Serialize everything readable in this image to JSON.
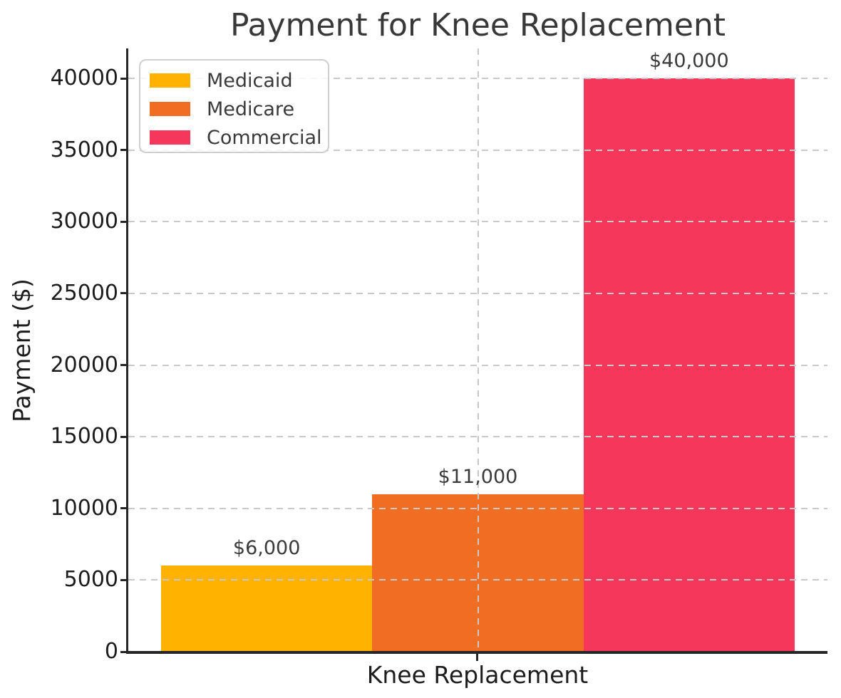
{
  "chart_data": {
    "type": "bar",
    "title": "Payment for Knee Replacement",
    "ylabel": "Payment ($)",
    "xlabel": "",
    "categories": [
      "Knee Replacement"
    ],
    "series": [
      {
        "name": "Medicaid",
        "values": [
          6000
        ],
        "color": "#FFB300",
        "data_label": "$6,000"
      },
      {
        "name": "Medicare",
        "values": [
          11000
        ],
        "color": "#F16D24",
        "data_label": "$11,000"
      },
      {
        "name": "Commercial",
        "values": [
          40000
        ],
        "color": "#F4375A",
        "data_label": "$40,000"
      }
    ],
    "yticks": [
      0,
      5000,
      10000,
      15000,
      20000,
      25000,
      30000,
      35000,
      40000
    ],
    "ylim": [
      0,
      42100
    ],
    "grid": {
      "shown": true,
      "style": "dashed",
      "color": "#c9c9c9",
      "axes": "both",
      "drawn_above_bars": true
    },
    "legend": {
      "position": "upper left",
      "entries": [
        "Medicaid",
        "Medicare",
        "Commercial"
      ]
    }
  }
}
